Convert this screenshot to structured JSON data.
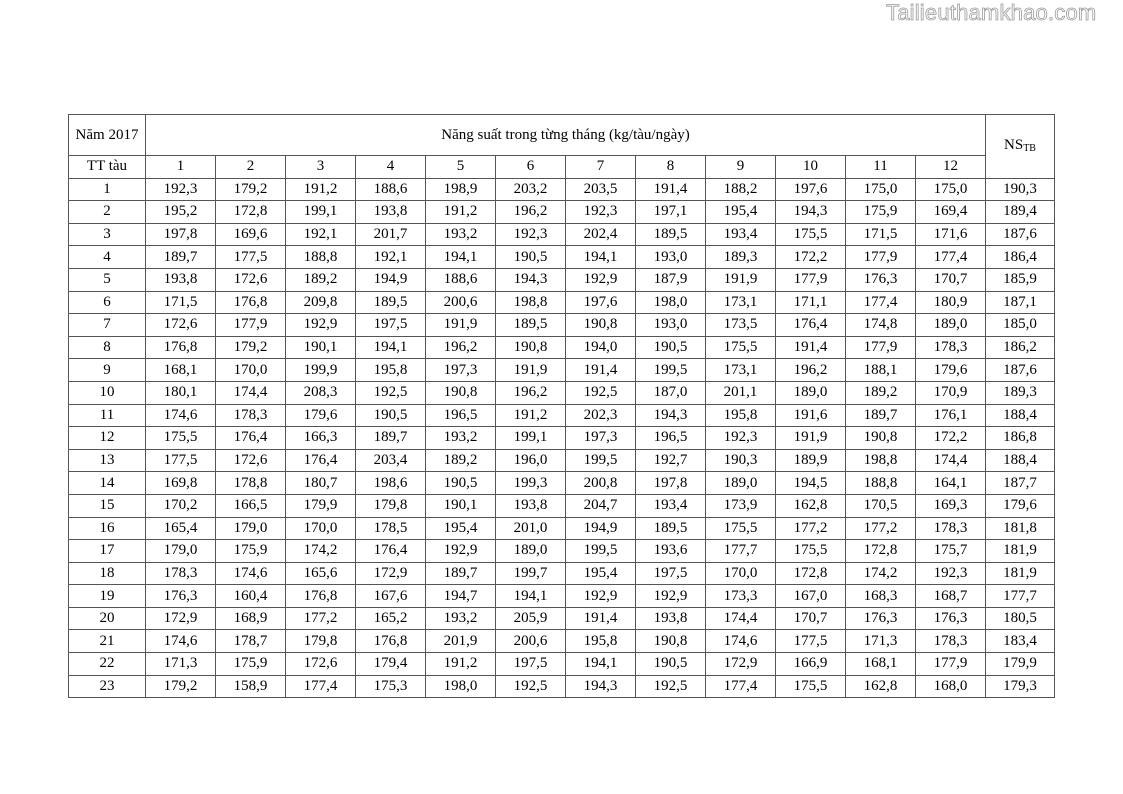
{
  "watermark": "Tailieuthamkhao.com",
  "table": {
    "year_label": "Năm 2017",
    "group_header": "Năng suất trong từng tháng (kg/tàu/ngày)",
    "avg_header_main": "NS",
    "avg_header_sub": "TB",
    "row_header": "TT tàu",
    "months": [
      "1",
      "2",
      "3",
      "4",
      "5",
      "6",
      "7",
      "8",
      "9",
      "10",
      "11",
      "12"
    ],
    "rows": [
      {
        "id": "1",
        "values": [
          "192,3",
          "179,2",
          "191,2",
          "188,6",
          "198,9",
          "203,2",
          "203,5",
          "191,4",
          "188,2",
          "197,6",
          "175,0",
          "175,0"
        ],
        "avg": "190,3"
      },
      {
        "id": "2",
        "values": [
          "195,2",
          "172,8",
          "199,1",
          "193,8",
          "191,2",
          "196,2",
          "192,3",
          "197,1",
          "195,4",
          "194,3",
          "175,9",
          "169,4"
        ],
        "avg": "189,4"
      },
      {
        "id": "3",
        "values": [
          "197,8",
          "169,6",
          "192,1",
          "201,7",
          "193,2",
          "192,3",
          "202,4",
          "189,5",
          "193,4",
          "175,5",
          "171,5",
          "171,6"
        ],
        "avg": "187,6"
      },
      {
        "id": "4",
        "values": [
          "189,7",
          "177,5",
          "188,8",
          "192,1",
          "194,1",
          "190,5",
          "194,1",
          "193,0",
          "189,3",
          "172,2",
          "177,9",
          "177,4"
        ],
        "avg": "186,4"
      },
      {
        "id": "5",
        "values": [
          "193,8",
          "172,6",
          "189,2",
          "194,9",
          "188,6",
          "194,3",
          "192,9",
          "187,9",
          "191,9",
          "177,9",
          "176,3",
          "170,7"
        ],
        "avg": "185,9"
      },
      {
        "id": "6",
        "values": [
          "171,5",
          "176,8",
          "209,8",
          "189,5",
          "200,6",
          "198,8",
          "197,6",
          "198,0",
          "173,1",
          "171,1",
          "177,4",
          "180,9"
        ],
        "avg": "187,1"
      },
      {
        "id": "7",
        "values": [
          "172,6",
          "177,9",
          "192,9",
          "197,5",
          "191,9",
          "189,5",
          "190,8",
          "193,0",
          "173,5",
          "176,4",
          "174,8",
          "189,0"
        ],
        "avg": "185,0"
      },
      {
        "id": "8",
        "values": [
          "176,8",
          "179,2",
          "190,1",
          "194,1",
          "196,2",
          "190,8",
          "194,0",
          "190,5",
          "175,5",
          "191,4",
          "177,9",
          "178,3"
        ],
        "avg": "186,2"
      },
      {
        "id": "9",
        "values": [
          "168,1",
          "170,0",
          "199,9",
          "195,8",
          "197,3",
          "191,9",
          "191,4",
          "199,5",
          "173,1",
          "196,2",
          "188,1",
          "179,6"
        ],
        "avg": "187,6"
      },
      {
        "id": "10",
        "values": [
          "180,1",
          "174,4",
          "208,3",
          "192,5",
          "190,8",
          "196,2",
          "192,5",
          "187,0",
          "201,1",
          "189,0",
          "189,2",
          "170,9"
        ],
        "avg": "189,3"
      },
      {
        "id": "11",
        "values": [
          "174,6",
          "178,3",
          "179,6",
          "190,5",
          "196,5",
          "191,2",
          "202,3",
          "194,3",
          "195,8",
          "191,6",
          "189,7",
          "176,1"
        ],
        "avg": "188,4"
      },
      {
        "id": "12",
        "values": [
          "175,5",
          "176,4",
          "166,3",
          "189,7",
          "193,2",
          "199,1",
          "197,3",
          "196,5",
          "192,3",
          "191,9",
          "190,8",
          "172,2"
        ],
        "avg": "186,8"
      },
      {
        "id": "13",
        "values": [
          "177,5",
          "172,6",
          "176,4",
          "203,4",
          "189,2",
          "196,0",
          "199,5",
          "192,7",
          "190,3",
          "189,9",
          "198,8",
          "174,4"
        ],
        "avg": "188,4"
      },
      {
        "id": "14",
        "values": [
          "169,8",
          "178,8",
          "180,7",
          "198,6",
          "190,5",
          "199,3",
          "200,8",
          "197,8",
          "189,0",
          "194,5",
          "188,8",
          "164,1"
        ],
        "avg": "187,7"
      },
      {
        "id": "15",
        "values": [
          "170,2",
          "166,5",
          "179,9",
          "179,8",
          "190,1",
          "193,8",
          "204,7",
          "193,4",
          "173,9",
          "162,8",
          "170,5",
          "169,3"
        ],
        "avg": "179,6"
      },
      {
        "id": "16",
        "values": [
          "165,4",
          "179,0",
          "170,0",
          "178,5",
          "195,4",
          "201,0",
          "194,9",
          "189,5",
          "175,5",
          "177,2",
          "177,2",
          "178,3"
        ],
        "avg": "181,8"
      },
      {
        "id": "17",
        "values": [
          "179,0",
          "175,9",
          "174,2",
          "176,4",
          "192,9",
          "189,0",
          "199,5",
          "193,6",
          "177,7",
          "175,5",
          "172,8",
          "175,7"
        ],
        "avg": "181,9"
      },
      {
        "id": "18",
        "values": [
          "178,3",
          "174,6",
          "165,6",
          "172,9",
          "189,7",
          "199,7",
          "195,4",
          "197,5",
          "170,0",
          "172,8",
          "174,2",
          "192,3"
        ],
        "avg": "181,9"
      },
      {
        "id": "19",
        "values": [
          "176,3",
          "160,4",
          "176,8",
          "167,6",
          "194,7",
          "194,1",
          "192,9",
          "192,9",
          "173,3",
          "167,0",
          "168,3",
          "168,7"
        ],
        "avg": "177,7"
      },
      {
        "id": "20",
        "values": [
          "172,9",
          "168,9",
          "177,2",
          "165,2",
          "193,2",
          "205,9",
          "191,4",
          "193,8",
          "174,4",
          "170,7",
          "176,3",
          "176,3"
        ],
        "avg": "180,5"
      },
      {
        "id": "21",
        "values": [
          "174,6",
          "178,7",
          "179,8",
          "176,8",
          "201,9",
          "200,6",
          "195,8",
          "190,8",
          "174,6",
          "177,5",
          "171,3",
          "178,3"
        ],
        "avg": "183,4"
      },
      {
        "id": "22",
        "values": [
          "171,3",
          "175,9",
          "172,6",
          "179,4",
          "191,2",
          "197,5",
          "194,1",
          "190,5",
          "172,9",
          "166,9",
          "168,1",
          "177,9"
        ],
        "avg": "179,9"
      },
      {
        "id": "23",
        "values": [
          "179,2",
          "158,9",
          "177,4",
          "175,3",
          "198,0",
          "192,5",
          "194,3",
          "192,5",
          "177,4",
          "175,5",
          "162,8",
          "168,0"
        ],
        "avg": "179,3"
      }
    ]
  }
}
